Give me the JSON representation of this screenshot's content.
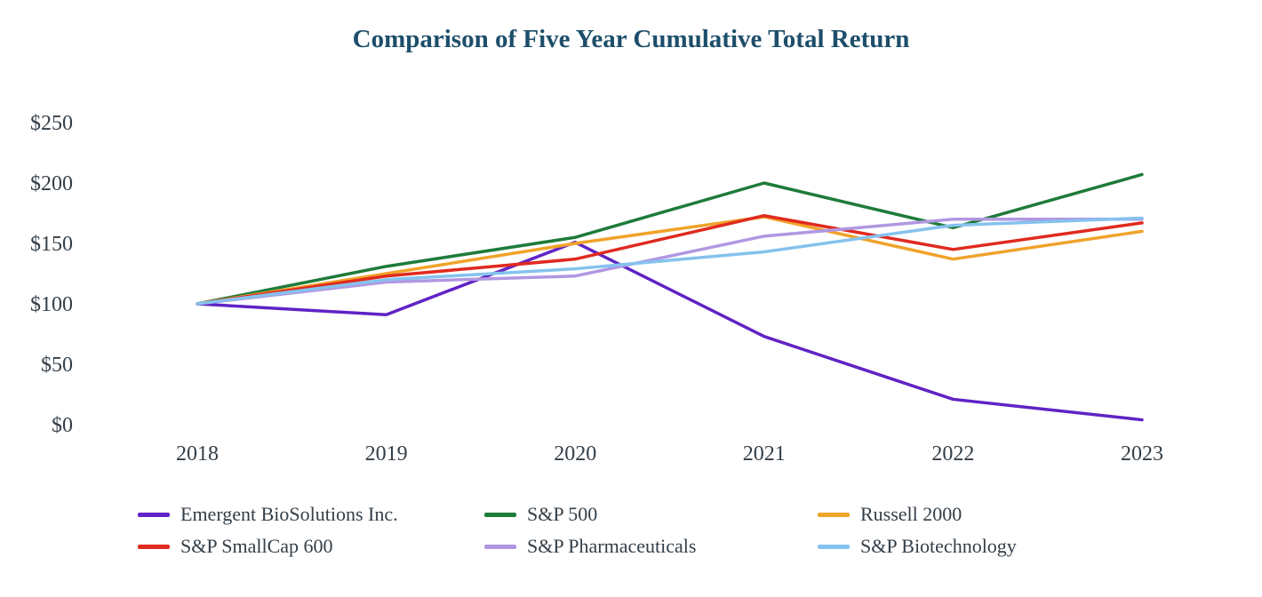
{
  "title": "Comparison of Five Year Cumulative Total Return",
  "title_color": "#1d4e6b",
  "text_color": "#333e48",
  "chart_data": {
    "type": "line",
    "title": "Comparison of Five Year Cumulative Total Return",
    "xlabel": "",
    "ylabel": "",
    "x_tick_labels": [
      "2018",
      "2019",
      "2020",
      "2021",
      "2022",
      "2023"
    ],
    "y_ticks": [
      0,
      50,
      100,
      150,
      200,
      250
    ],
    "y_tick_labels": [
      "$0",
      "$50",
      "$100",
      "$150",
      "$200",
      "$250"
    ],
    "ylim": [
      0,
      250
    ],
    "grid": false,
    "legend_position": "bottom",
    "series": [
      {
        "name": "Emergent BioSolutions Inc.",
        "color": "#6023c5",
        "values": [
          100,
          91,
          151,
          73,
          21,
          4
        ]
      },
      {
        "name": "S&P 500",
        "color": "#1e7b3a",
        "values": [
          100,
          131,
          155,
          200,
          163,
          207
        ]
      },
      {
        "name": "Russell 2000",
        "color": "#f0a32a",
        "values": [
          100,
          125,
          150,
          172,
          137,
          160
        ]
      },
      {
        "name": "S&P SmallCap 600",
        "color": "#e02a1e",
        "values": [
          100,
          123,
          137,
          173,
          145,
          167
        ]
      },
      {
        "name": "S&P Pharmaceuticals",
        "color": "#b197e2",
        "values": [
          100,
          118,
          123,
          156,
          170,
          170
        ]
      },
      {
        "name": "S&P Biotechnology",
        "color": "#85c2ee",
        "values": [
          100,
          120,
          129,
          143,
          165,
          171
        ]
      }
    ]
  }
}
